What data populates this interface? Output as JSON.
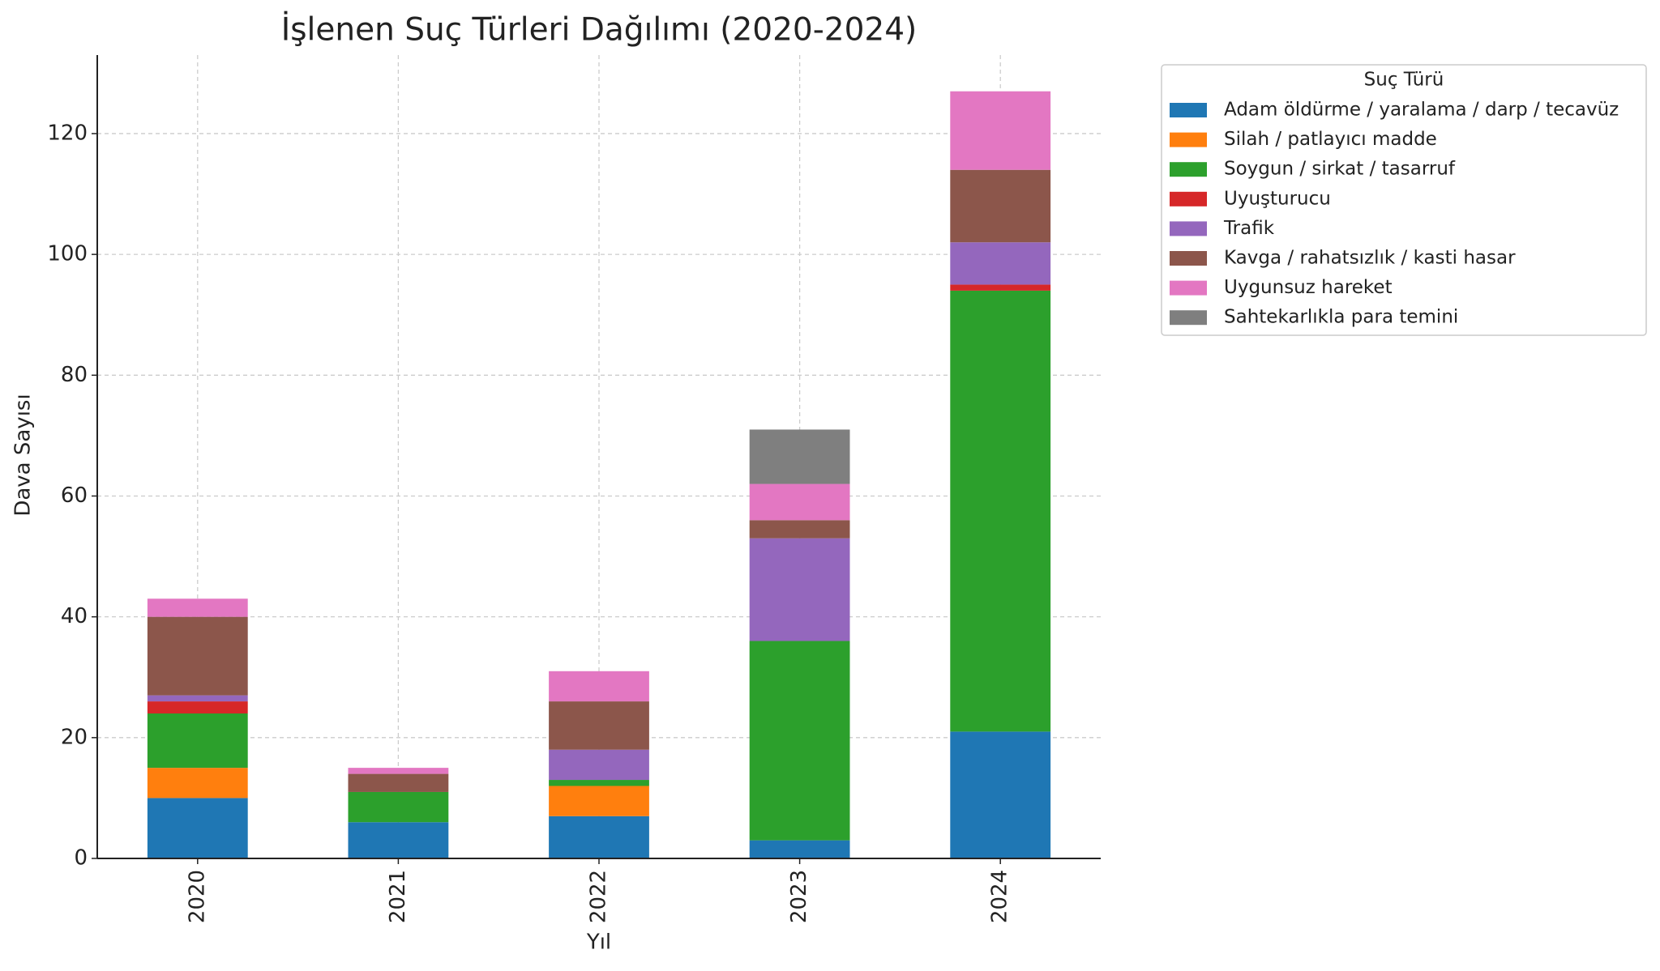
{
  "chart_data": {
    "type": "stacked_bar",
    "title": "İşlenen Suç Türleri Dağılımı (2020-2024)",
    "x_label": "Yıl",
    "y_label": "Dava Sayısı",
    "categories": [
      "2020",
      "2021",
      "2022",
      "2023",
      "2024"
    ],
    "series": [
      {
        "name": "Adam öldürme / yaralama / darp / tecavüz",
        "color": "#1f77b4",
        "values": [
          10,
          6,
          7,
          3,
          21
        ]
      },
      {
        "name": "Silah / patlayıcı madde",
        "color": "#ff7f0e",
        "values": [
          5,
          0,
          5,
          0,
          0
        ]
      },
      {
        "name": "Soygun / sirkat / tasarruf",
        "color": "#2ca02c",
        "values": [
          9,
          5,
          1,
          33,
          73
        ]
      },
      {
        "name": "Uyuşturucu",
        "color": "#d62728",
        "values": [
          2,
          0,
          0,
          0,
          1
        ]
      },
      {
        "name": "Trafik",
        "color": "#9467bd",
        "values": [
          1,
          0,
          5,
          17,
          7
        ]
      },
      {
        "name": "Kavga / rahatsızlık / kasti hasar",
        "color": "#8c564b",
        "values": [
          13,
          3,
          8,
          3,
          12
        ]
      },
      {
        "name": "Uygunsuz hareket",
        "color": "#e377c2",
        "values": [
          3,
          1,
          5,
          6,
          13
        ]
      },
      {
        "name": "Sahtekarlıkla para temini",
        "color": "#7f7f7f",
        "values": [
          0,
          0,
          0,
          9,
          0
        ]
      }
    ],
    "legend_title": "Suç Türü",
    "legend_position": "outside right",
    "ylim": [
      0,
      133
    ],
    "yticks": [
      0,
      20,
      40,
      60,
      80,
      100,
      120
    ],
    "grid": true
  }
}
